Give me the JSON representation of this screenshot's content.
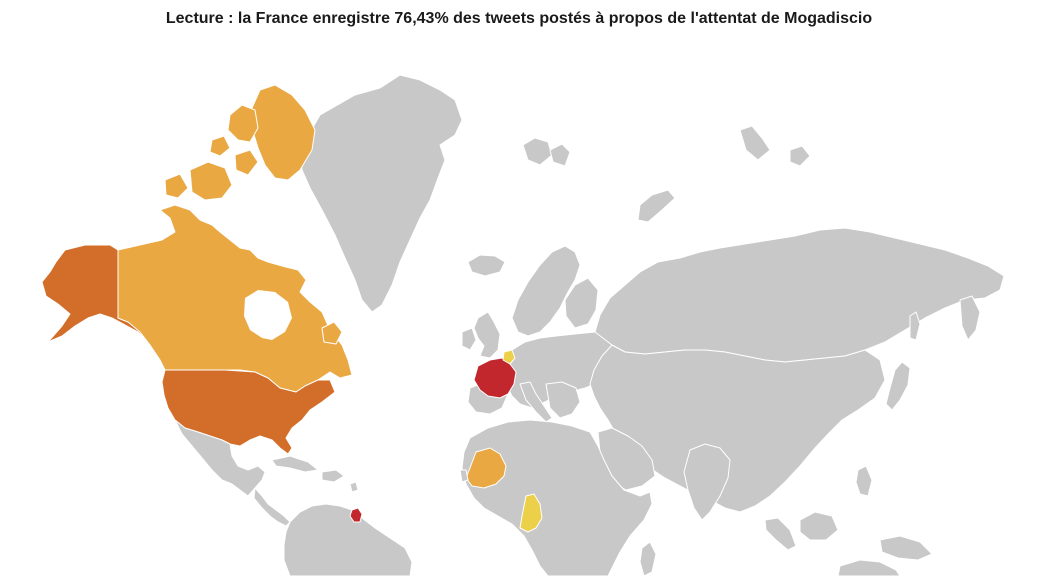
{
  "caption": "Lecture : la France enregistre 76,43% des tweets postés à propos de l'attentat de Mogadiscio",
  "palette": {
    "no_data": "#c8c8c8",
    "low": "#ecd049",
    "medium": "#eaa843",
    "high": "#d36e2a",
    "highest": "#c1272d"
  },
  "highlighted_countries": [
    {
      "name": "France",
      "level": "highest"
    },
    {
      "name": "United States",
      "level": "high"
    },
    {
      "name": "Alaska (United States)",
      "level": "high"
    },
    {
      "name": "Canada",
      "level": "medium"
    },
    {
      "name": "Mali",
      "level": "medium"
    },
    {
      "name": "Belgium",
      "level": "low"
    },
    {
      "name": "Congo",
      "level": "low"
    },
    {
      "name": "French Guiana",
      "level": "highest"
    }
  ]
}
